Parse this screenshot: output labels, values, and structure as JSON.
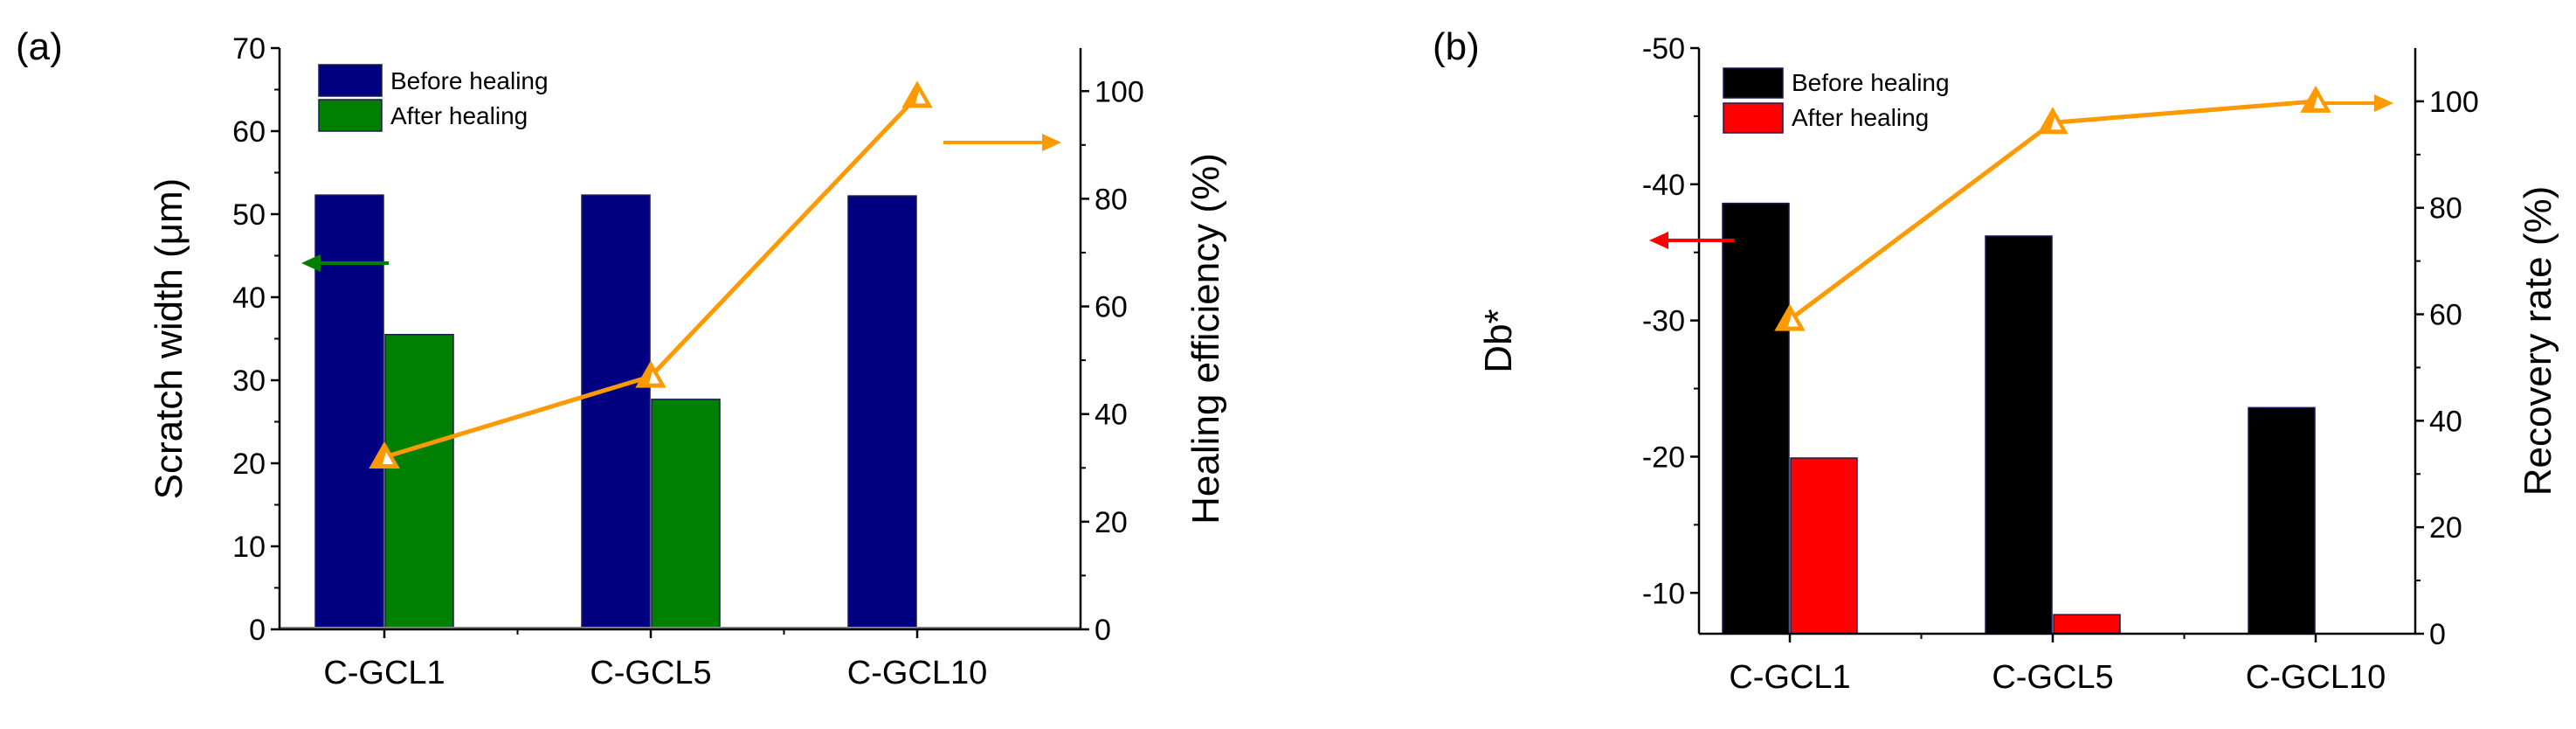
{
  "chart_data": [
    {
      "type": "bar",
      "panel": "(a)",
      "categories": [
        "C-GCL1",
        "C-GCL5",
        "C-GCL10"
      ],
      "ylabel": "Scratch width (μm)",
      "y2label": "Healing efficiency (%)",
      "ylim": [
        0,
        70
      ],
      "y2lim": [
        0,
        108
      ],
      "yticks": [
        "0",
        "10",
        "20",
        "30",
        "40",
        "50",
        "60",
        "70"
      ],
      "y2ticks": [
        "0",
        "20",
        "40",
        "60",
        "80",
        "100"
      ],
      "series": [
        {
          "name": "Before healing",
          "kind": "bar",
          "axis": "left",
          "color": "#000080",
          "values": [
            52.3,
            52.3,
            52.2
          ]
        },
        {
          "name": "After healing",
          "kind": "bar",
          "axis": "left",
          "color": "#008000",
          "values": [
            35.5,
            27.7,
            null
          ]
        },
        {
          "name": "Healing efficiency",
          "kind": "line",
          "axis": "right",
          "color": "#FF9900",
          "marker": "triangle",
          "values": [
            32,
            47,
            99
          ]
        }
      ],
      "axis_arrows": [
        {
          "points_to": "left",
          "color": "#008000"
        },
        {
          "points_to": "right",
          "color": "#FF9900"
        }
      ]
    },
    {
      "type": "bar",
      "panel": "(b)",
      "categories": [
        "C-GCL1",
        "C-GCL5",
        "C-GCL10"
      ],
      "ylabel": "Db*",
      "y2label": "Recovery rate (%)",
      "ylim": [
        -7,
        -50
      ],
      "y2lim": [
        0,
        110
      ],
      "yticks": [
        "-10",
        "-20",
        "-30",
        "-40",
        "-50"
      ],
      "y2ticks": [
        "0",
        "20",
        "40",
        "60",
        "80",
        "100"
      ],
      "series": [
        {
          "name": "Before healing",
          "kind": "bar",
          "axis": "left",
          "color": "#000000",
          "values": [
            -38.6,
            -36.2,
            -23.6
          ]
        },
        {
          "name": "After healing",
          "kind": "bar",
          "axis": "left",
          "color": "#FF0000",
          "values": [
            -19.9,
            -8.4,
            null
          ]
        },
        {
          "name": "Recovery rate",
          "kind": "line",
          "axis": "right",
          "color": "#FF9900",
          "marker": "triangle",
          "values": [
            59,
            96,
            100
          ]
        }
      ],
      "axis_arrows": [
        {
          "points_to": "left",
          "color": "#FF0000"
        },
        {
          "points_to": "right",
          "color": "#FF9900"
        }
      ]
    }
  ]
}
